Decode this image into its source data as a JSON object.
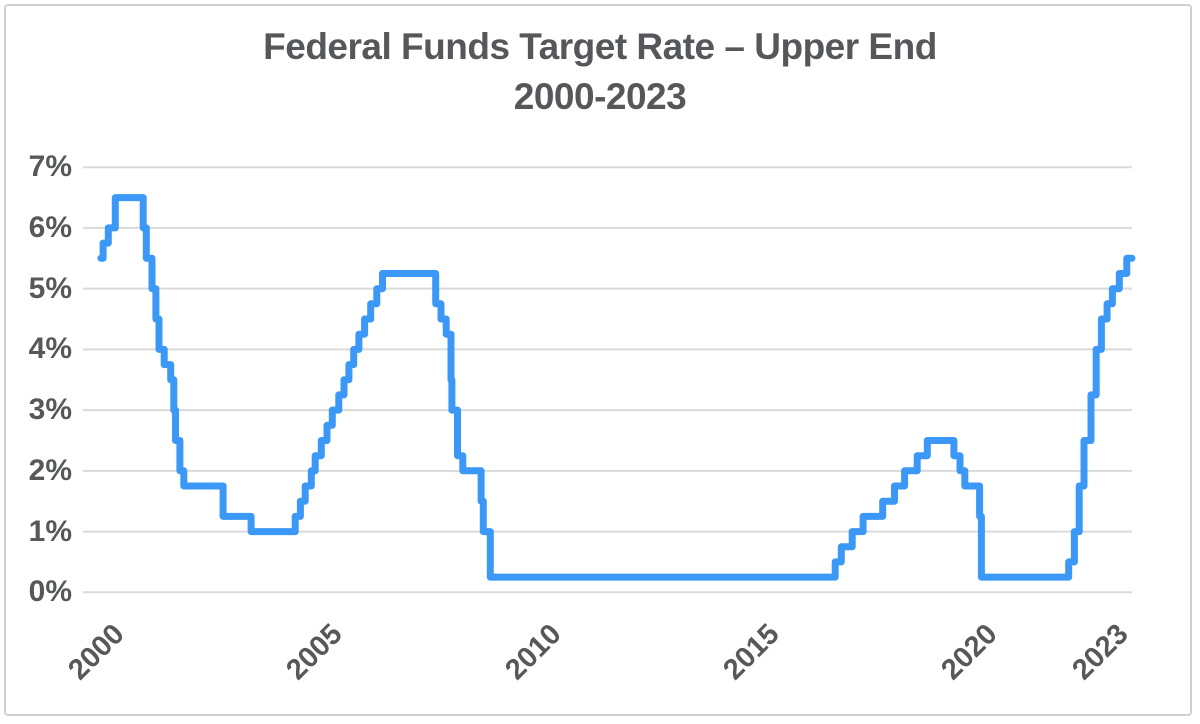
{
  "title": {
    "line1": "Federal Funds Target Rate – Upper End",
    "line2": "2000-2023"
  },
  "chart_data": {
    "type": "line",
    "style": "step-after",
    "title": "Federal Funds Target Rate – Upper End 2000-2023",
    "xlabel": "",
    "ylabel": "",
    "x_unit": "year",
    "y_unit": "percent",
    "xlim": [
      1999.63,
      2023.66
    ],
    "ylim": [
      0,
      7
    ],
    "grid": "horizontal",
    "legend_position": "none",
    "line_color": "#3b98f6",
    "grid_color": "#dadada",
    "tick_label_color": "#57585b",
    "title_color": "#55575a",
    "y_ticks": [
      {
        "value": 7,
        "label": "7%"
      },
      {
        "value": 6,
        "label": "6%"
      },
      {
        "value": 5,
        "label": "5%"
      },
      {
        "value": 4,
        "label": "4%"
      },
      {
        "value": 3,
        "label": "3%"
      },
      {
        "value": 2,
        "label": "2%"
      },
      {
        "value": 1,
        "label": "1%"
      },
      {
        "value": 0,
        "label": "0%"
      }
    ],
    "x_ticks": [
      {
        "value": 2000,
        "label": "2000"
      },
      {
        "value": 2005,
        "label": "2005"
      },
      {
        "value": 2010,
        "label": "2010"
      },
      {
        "value": 2015,
        "label": "2015"
      },
      {
        "value": 2020,
        "label": "2020"
      },
      {
        "value": 2023,
        "label": "2023"
      }
    ],
    "series": [
      {
        "name": "Federal Funds Target Rate (Upper End)",
        "points": [
          [
            2000.04,
            5.5
          ],
          [
            2000.09,
            5.75
          ],
          [
            2000.21,
            6.0
          ],
          [
            2000.37,
            6.5
          ],
          [
            2001.01,
            6.0
          ],
          [
            2001.08,
            5.5
          ],
          [
            2001.21,
            5.0
          ],
          [
            2001.3,
            4.5
          ],
          [
            2001.37,
            4.0
          ],
          [
            2001.49,
            3.75
          ],
          [
            2001.64,
            3.5
          ],
          [
            2001.71,
            3.0
          ],
          [
            2001.75,
            2.5
          ],
          [
            2001.85,
            2.0
          ],
          [
            2001.94,
            1.75
          ],
          [
            2002.84,
            1.25
          ],
          [
            2003.48,
            1.0
          ],
          [
            2004.49,
            1.25
          ],
          [
            2004.61,
            1.5
          ],
          [
            2004.72,
            1.75
          ],
          [
            2004.86,
            2.0
          ],
          [
            2004.95,
            2.25
          ],
          [
            2005.09,
            2.5
          ],
          [
            2005.22,
            2.75
          ],
          [
            2005.34,
            3.0
          ],
          [
            2005.49,
            3.25
          ],
          [
            2005.61,
            3.5
          ],
          [
            2005.72,
            3.75
          ],
          [
            2005.83,
            4.0
          ],
          [
            2005.95,
            4.25
          ],
          [
            2006.08,
            4.5
          ],
          [
            2006.22,
            4.75
          ],
          [
            2006.36,
            5.0
          ],
          [
            2006.49,
            5.25
          ],
          [
            2007.71,
            4.75
          ],
          [
            2007.83,
            4.5
          ],
          [
            2007.95,
            4.25
          ],
          [
            2008.06,
            3.5
          ],
          [
            2008.08,
            3.0
          ],
          [
            2008.21,
            2.25
          ],
          [
            2008.33,
            2.0
          ],
          [
            2008.75,
            1.5
          ],
          [
            2008.8,
            1.0
          ],
          [
            2008.96,
            0.25
          ],
          [
            2016.86,
            0.5
          ],
          [
            2017.0,
            0.75
          ],
          [
            2017.25,
            1.0
          ],
          [
            2017.5,
            1.25
          ],
          [
            2017.95,
            1.5
          ],
          [
            2018.22,
            1.75
          ],
          [
            2018.45,
            2.0
          ],
          [
            2018.74,
            2.25
          ],
          [
            2018.97,
            2.5
          ],
          [
            2019.58,
            2.25
          ],
          [
            2019.72,
            2.0
          ],
          [
            2019.83,
            1.75
          ],
          [
            2020.17,
            1.25
          ],
          [
            2020.21,
            0.25
          ],
          [
            2022.21,
            0.5
          ],
          [
            2022.34,
            1.0
          ],
          [
            2022.45,
            1.75
          ],
          [
            2022.56,
            2.5
          ],
          [
            2022.72,
            3.25
          ],
          [
            2022.84,
            4.0
          ],
          [
            2022.96,
            4.5
          ],
          [
            2023.09,
            4.75
          ],
          [
            2023.21,
            5.0
          ],
          [
            2023.37,
            5.25
          ],
          [
            2023.54,
            5.5
          ],
          [
            2023.66,
            5.5
          ]
        ]
      }
    ]
  }
}
